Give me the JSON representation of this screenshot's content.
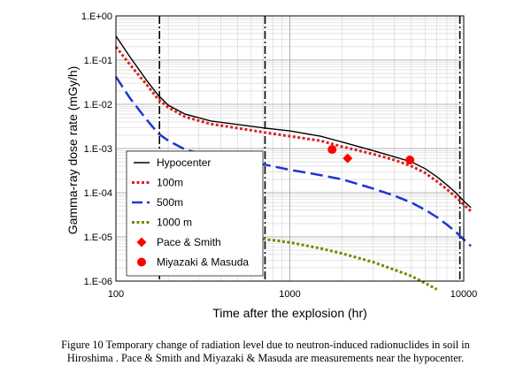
{
  "chart_data": {
    "type": "line",
    "xlabel": "Time after the explosion (hr)",
    "ylabel": "Gamma-ray dose rate (mGy/h)",
    "x_scale": "log",
    "y_scale": "log",
    "xlim": [
      100,
      10000
    ],
    "ylim": [
      1e-06,
      1
    ],
    "x_tick_labels": [
      "100",
      "1000",
      "10000"
    ],
    "y_tick_labels": [
      "1.E+00",
      "1.E-01",
      "1.E-02",
      "1.E-03",
      "1.E-04",
      "1.E-05",
      "1.E-06"
    ],
    "grid": true,
    "legend_position": "left",
    "vertical_markers": [
      178,
      720,
      9500
    ],
    "series": [
      {
        "name": "Hypocenter",
        "style": "solid",
        "color": "#000000",
        "x": [
          100,
          120,
          150,
          175,
          200,
          250,
          350,
          500,
          720,
          1000,
          1500,
          2000,
          3000,
          4000,
          5000,
          6000,
          7000,
          8000,
          9000,
          10000,
          11000
        ],
        "y": [
          0.35,
          0.12,
          0.035,
          0.016,
          0.0095,
          0.006,
          0.0042,
          0.0035,
          0.0029,
          0.0025,
          0.0019,
          0.0014,
          0.0009,
          0.00065,
          0.0005,
          0.00035,
          0.00023,
          0.00015,
          0.0001,
          6.5e-05,
          4.6e-05
        ]
      },
      {
        "name": "100m",
        "style": "dotted",
        "color": "#e02020",
        "x": [
          100,
          120,
          150,
          175,
          200,
          250,
          350,
          500,
          720,
          1000,
          1500,
          2000,
          3000,
          4000,
          5000,
          6000,
          7000,
          8000,
          9000,
          10000,
          11000
        ],
        "y": [
          0.2,
          0.08,
          0.028,
          0.013,
          0.0085,
          0.0052,
          0.0036,
          0.0029,
          0.0023,
          0.0019,
          0.0015,
          0.0011,
          0.00075,
          0.00055,
          0.0004,
          0.00028,
          0.00018,
          0.00012,
          8e-05,
          5.4e-05,
          3.8e-05
        ]
      },
      {
        "name": "500m",
        "style": "dashed",
        "color": "#1f35d1",
        "x": [
          100,
          120,
          150,
          175,
          200,
          250,
          350,
          500,
          720,
          1000,
          1500,
          2000,
          3000,
          4000,
          5000,
          6000,
          7000,
          8000,
          9000,
          10000,
          11000
        ],
        "y": [
          0.042,
          0.014,
          0.0045,
          0.0022,
          0.0015,
          0.00095,
          0.00066,
          0.00053,
          0.00043,
          0.00033,
          0.00025,
          0.0002,
          0.000125,
          8.5e-05,
          6e-05,
          4.1e-05,
          2.8e-05,
          1.9e-05,
          1.3e-05,
          8.8e-06,
          6.2e-06
        ]
      },
      {
        "name": "1000 m",
        "style": "dotted",
        "color": "#808000",
        "x": [
          700,
          1000,
          1500,
          2000,
          3000,
          4000,
          5000,
          6000,
          7000
        ],
        "y": [
          9e-06,
          7.5e-06,
          5.5e-06,
          4.2e-06,
          2.7e-06,
          1.8e-06,
          1.3e-06,
          9e-07,
          6.5e-07
        ]
      }
    ],
    "points": [
      {
        "name": "Pace & Smith",
        "marker": "diamond",
        "color": "#ff0000",
        "x": [
          2150
        ],
        "y": [
          0.0006
        ]
      },
      {
        "name": "Miyazaki & Masuda",
        "marker": "circle",
        "color": "#ff0000",
        "x": [
          1750,
          4900
        ],
        "y": [
          0.00095,
          0.00055
        ]
      }
    ]
  },
  "caption": {
    "line1": "Figure 10  Temporary change of radiation level due to neutron-induced radionuclides in soil in",
    "line2": "Hiroshima . Pace & Smith and Miyazaki & Masuda are measurements near the hypocenter."
  }
}
